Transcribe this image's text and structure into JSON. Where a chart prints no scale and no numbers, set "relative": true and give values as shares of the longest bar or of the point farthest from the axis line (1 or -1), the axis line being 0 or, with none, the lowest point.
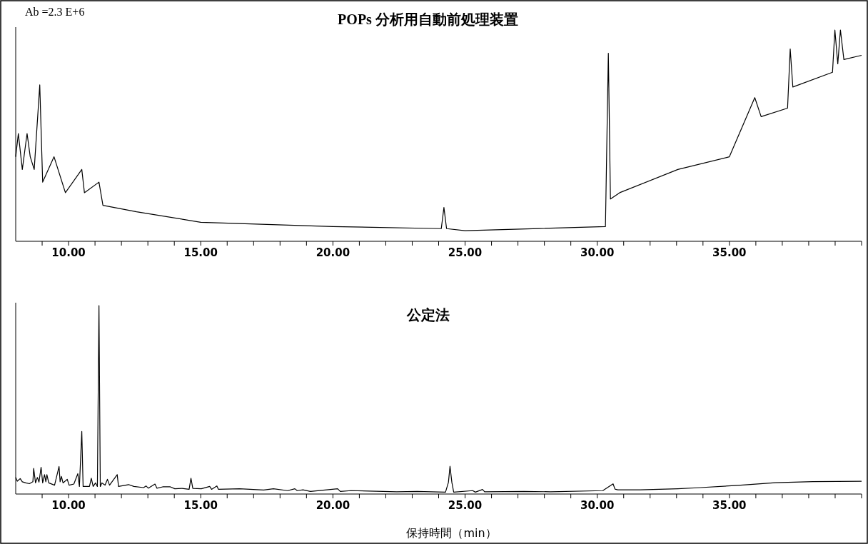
{
  "chart_data": [
    {
      "type": "line",
      "title": "POPs 分析用自動前処理装置",
      "annotations": [
        "Ab =2.3 E+6"
      ],
      "relative": true,
      "color": "#000000",
      "x": [
        8.0,
        8.1,
        8.25,
        8.43,
        8.55,
        8.7,
        8.91,
        9.02,
        9.45,
        9.88,
        10.5,
        10.6,
        11.15,
        11.3,
        12.57,
        15,
        20,
        24.1,
        24.2,
        24.3,
        25,
        30.31,
        30.42,
        30.5,
        30.85,
        33.05,
        35,
        35.96,
        36.2,
        37.2,
        37.3,
        37.4,
        38.9,
        38.99,
        39.1,
        39.2,
        39.33,
        40
      ],
      "values": [
        0.4,
        0.51,
        0.34,
        0.51,
        0.4,
        0.34,
        0.74,
        0.28,
        0.4,
        0.23,
        0.34,
        0.23,
        0.28,
        0.17,
        0.14,
        0.09,
        0.07,
        0.06,
        0.16,
        0.06,
        0.05,
        0.07,
        0.89,
        0.2,
        0.23,
        0.34,
        0.4,
        0.68,
        0.59,
        0.63,
        0.91,
        0.73,
        0.8,
        1.0,
        0.84,
        1.0,
        0.86,
        0.88
      ],
      "xlim": [
        8,
        40
      ],
      "xticks": [
        {
          "value": 9,
          "label": null
        },
        {
          "value": 10,
          "label": "10.00"
        },
        {
          "value": 11,
          "label": null
        },
        {
          "value": 12,
          "label": null
        },
        {
          "value": 13,
          "label": null
        },
        {
          "value": 14,
          "label": null
        },
        {
          "value": 15,
          "label": "15.00"
        },
        {
          "value": 16,
          "label": null
        },
        {
          "value": 17,
          "label": null
        },
        {
          "value": 18,
          "label": null
        },
        {
          "value": 19,
          "label": null
        },
        {
          "value": 20,
          "label": "20.00"
        },
        {
          "value": 21,
          "label": null
        },
        {
          "value": 22,
          "label": null
        },
        {
          "value": 23,
          "label": null
        },
        {
          "value": 24,
          "label": null
        },
        {
          "value": 25,
          "label": "25.00"
        },
        {
          "value": 26,
          "label": null
        },
        {
          "value": 27,
          "label": null
        },
        {
          "value": 28,
          "label": null
        },
        {
          "value": 29,
          "label": null
        },
        {
          "value": 30,
          "label": "30.00"
        },
        {
          "value": 31,
          "label": null
        },
        {
          "value": 32,
          "label": null
        },
        {
          "value": 33,
          "label": null
        },
        {
          "value": 34,
          "label": null
        },
        {
          "value": 35,
          "label": "35.00"
        },
        {
          "value": 36,
          "label": null
        },
        {
          "value": 37,
          "label": null
        },
        {
          "value": 38,
          "label": null
        },
        {
          "value": 39,
          "label": null
        },
        {
          "value": 40,
          "label": null
        }
      ]
    },
    {
      "type": "line",
      "title": "公定法",
      "xlabel": "保持時間（min）",
      "relative": true,
      "color": "#000000",
      "x": [
        8.0,
        8.06,
        8.17,
        8.25,
        8.38,
        8.52,
        8.65,
        8.68,
        8.75,
        8.82,
        8.88,
        8.96,
        9.02,
        9.09,
        9.14,
        9.18,
        9.25,
        9.47,
        9.64,
        9.68,
        9.73,
        9.79,
        9.95,
        10.02,
        10.2,
        10.35,
        10.41,
        10.5,
        10.55,
        10.79,
        10.86,
        10.93,
        11.02,
        11.09,
        11.15,
        11.2,
        11.26,
        11.38,
        11.47,
        11.55,
        11.84,
        11.89,
        12.27,
        12.47,
        12.84,
        12.93,
        13.02,
        13.27,
        13.34,
        13.56,
        13.85,
        14.02,
        14.29,
        14.56,
        14.63,
        14.7,
        15.02,
        15.34,
        15.41,
        15.61,
        15.67,
        16.47,
        17.38,
        17.75,
        18.29,
        18.56,
        18.65,
        18.87,
        19.15,
        20.18,
        20.28,
        20.68,
        22.41,
        23.19,
        24.26,
        24.37,
        24.43,
        24.5,
        24.57,
        25.29,
        25.39,
        25.66,
        25.74,
        27.23,
        28.23,
        30.21,
        30.6,
        30.67,
        30.78,
        31.63,
        33.05,
        33.9,
        35.32,
        36.74,
        38.16,
        40
      ],
      "values": [
        0.088,
        0.068,
        0.082,
        0.065,
        0.059,
        0.055,
        0.065,
        0.136,
        0.059,
        0.088,
        0.063,
        0.142,
        0.059,
        0.103,
        0.065,
        0.103,
        0.059,
        0.047,
        0.146,
        0.065,
        0.093,
        0.059,
        0.078,
        0.047,
        0.053,
        0.108,
        0.04,
        0.332,
        0.04,
        0.04,
        0.084,
        0.04,
        0.059,
        0.04,
        1.0,
        0.04,
        0.059,
        0.047,
        0.078,
        0.047,
        0.103,
        0.04,
        0.05,
        0.04,
        0.034,
        0.043,
        0.031,
        0.053,
        0.031,
        0.038,
        0.038,
        0.028,
        0.03,
        0.025,
        0.084,
        0.03,
        0.028,
        0.04,
        0.025,
        0.043,
        0.025,
        0.028,
        0.021,
        0.028,
        0.018,
        0.028,
        0.018,
        0.022,
        0.014,
        0.028,
        0.014,
        0.018,
        0.012,
        0.014,
        0.01,
        0.062,
        0.147,
        0.062,
        0.01,
        0.018,
        0.01,
        0.024,
        0.012,
        0.014,
        0.012,
        0.018,
        0.054,
        0.026,
        0.022,
        0.022,
        0.028,
        0.034,
        0.046,
        0.06,
        0.066,
        0.068
      ],
      "xlim": [
        8,
        40
      ],
      "xticks": [
        {
          "value": 9,
          "label": null
        },
        {
          "value": 10,
          "label": "10.00"
        },
        {
          "value": 11,
          "label": null
        },
        {
          "value": 12,
          "label": null
        },
        {
          "value": 13,
          "label": null
        },
        {
          "value": 14,
          "label": null
        },
        {
          "value": 15,
          "label": "15.00"
        },
        {
          "value": 16,
          "label": null
        },
        {
          "value": 17,
          "label": null
        },
        {
          "value": 18,
          "label": null
        },
        {
          "value": 19,
          "label": null
        },
        {
          "value": 20,
          "label": "20.00"
        },
        {
          "value": 21,
          "label": null
        },
        {
          "value": 22,
          "label": null
        },
        {
          "value": 23,
          "label": null
        },
        {
          "value": 24,
          "label": null
        },
        {
          "value": 25,
          "label": "25.00"
        },
        {
          "value": 26,
          "label": null
        },
        {
          "value": 27,
          "label": null
        },
        {
          "value": 28,
          "label": null
        },
        {
          "value": 29,
          "label": null
        },
        {
          "value": 30,
          "label": "30.00"
        },
        {
          "value": 31,
          "label": null
        },
        {
          "value": 32,
          "label": null
        },
        {
          "value": 33,
          "label": null
        },
        {
          "value": 34,
          "label": null
        },
        {
          "value": 35,
          "label": "35.00"
        },
        {
          "value": 36,
          "label": null
        },
        {
          "value": 37,
          "label": null
        },
        {
          "value": 38,
          "label": null
        },
        {
          "value": 39,
          "label": null
        },
        {
          "value": 40,
          "label": null
        }
      ]
    }
  ]
}
